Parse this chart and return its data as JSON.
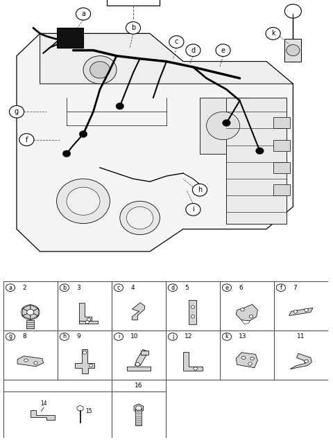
{
  "bg_color": "#ffffff",
  "fig_width": 4.8,
  "fig_height": 6.35,
  "dpi": 100,
  "line_color": "#000000",
  "gray": "#aaaaaa",
  "table_line_color": "#444444",
  "row1_headers": [
    [
      "a",
      2
    ],
    [
      "b",
      3
    ],
    [
      "c",
      4
    ],
    [
      "d",
      5
    ],
    [
      "e",
      6
    ],
    [
      "f",
      7
    ]
  ],
  "row2_headers": [
    [
      "g",
      8
    ],
    [
      "h",
      9
    ],
    [
      "i",
      10
    ],
    [
      "j",
      12
    ],
    [
      "k",
      13
    ],
    [
      "",
      11
    ]
  ]
}
